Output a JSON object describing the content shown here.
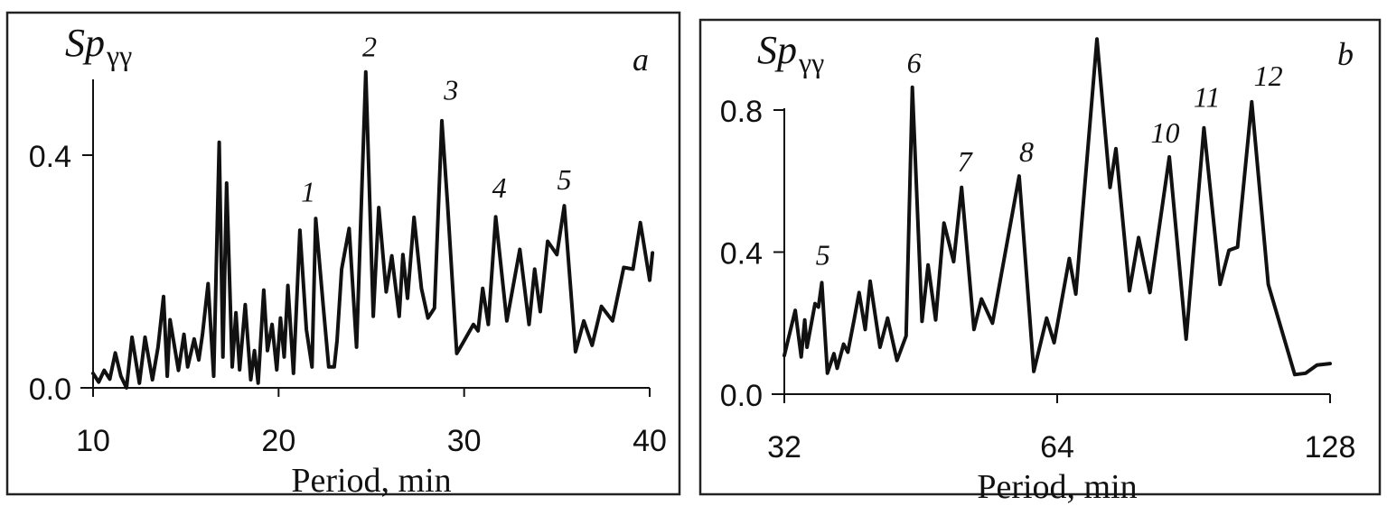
{
  "chart_data": [
    {
      "type": "line",
      "panel_label": "a",
      "ylabel_main": "Sp",
      "ylabel_sub": "γγ",
      "xlabel": "Period, min",
      "xscale": "linear",
      "xlim": [
        10,
        40
      ],
      "ylim": [
        0,
        0.53
      ],
      "xticks": [
        10,
        20,
        30,
        40
      ],
      "xtick_labels": [
        "10",
        "20",
        "30",
        "40"
      ],
      "yticks": [
        0.0,
        0.4
      ],
      "ytick_labels": [
        "0.0",
        "0.4"
      ],
      "grid": false,
      "series": [
        {
          "x": [
            10,
            10.3,
            10.6,
            10.9,
            11.2,
            11.5,
            11.8,
            12.1,
            12.5,
            12.8,
            13.2,
            13.5,
            13.8,
            14.0,
            14.15,
            14.6,
            14.9,
            15.1,
            15.45,
            15.7,
            15.9,
            16.2,
            16.5,
            16.8,
            17.0,
            17.2,
            17.5,
            17.7,
            17.9,
            18.2,
            18.5,
            18.7,
            18.9,
            19.2,
            19.4,
            19.65,
            19.9,
            20.1,
            20.3,
            20.5,
            20.8,
            21.15,
            21.5,
            21.8,
            22.0,
            22.4,
            22.7,
            23.0,
            23.15,
            23.4,
            23.8,
            24.2,
            24.7,
            25.1,
            25.4,
            25.8,
            26.1,
            26.5,
            26.7,
            26.95,
            27.3,
            27.7,
            28.05,
            28.4,
            28.8,
            29.1,
            29.6,
            30.0,
            30.5,
            30.75,
            31.0,
            31.3,
            31.7,
            32.3,
            33.0,
            33.5,
            33.8,
            34.1,
            34.5,
            35.0,
            35.4,
            36.0,
            36.45,
            36.9,
            37.4,
            38.0,
            38.6,
            39.1,
            39.5,
            40.0,
            40.15
          ],
          "y": [
            0.025,
            0.01,
            0.03,
            0.015,
            0.06,
            0.02,
            0.0,
            0.087,
            0.008,
            0.087,
            0.014,
            0.07,
            0.157,
            0.02,
            0.117,
            0.03,
            0.092,
            0.036,
            0.084,
            0.048,
            0.092,
            0.179,
            0.02,
            0.422,
            0.053,
            0.352,
            0.036,
            0.129,
            0.031,
            0.143,
            0.014,
            0.064,
            0.008,
            0.168,
            0.064,
            0.109,
            0.031,
            0.12,
            0.053,
            0.176,
            0.025,
            0.271,
            0.1,
            0.036,
            0.291,
            0.143,
            0.036,
            0.036,
            0.081,
            0.204,
            0.274,
            0.07,
            0.543,
            0.123,
            0.31,
            0.165,
            0.227,
            0.123,
            0.229,
            0.154,
            0.293,
            0.171,
            0.12,
            0.137,
            0.459,
            0.319,
            0.059,
            0.081,
            0.109,
            0.098,
            0.171,
            0.109,
            0.294,
            0.115,
            0.238,
            0.109,
            0.204,
            0.131,
            0.252,
            0.229,
            0.313,
            0.062,
            0.115,
            0.073,
            0.14,
            0.115,
            0.207,
            0.204,
            0.284,
            0.185,
            0.232
          ]
        }
      ],
      "annotations": [
        {
          "text": "1",
          "x": 21.6,
          "y": 0.32
        },
        {
          "text": "2",
          "x": 24.9,
          "y": 0.57
        },
        {
          "text": "3",
          "x": 29.3,
          "y": 0.495
        },
        {
          "text": "4",
          "x": 31.9,
          "y": 0.327
        },
        {
          "text": "5",
          "x": 35.4,
          "y": 0.341
        }
      ]
    },
    {
      "type": "line",
      "panel_label": "b",
      "ylabel_main": "Sp",
      "ylabel_sub": "γγ",
      "xlabel": "Period, min",
      "xscale": "log2",
      "xlim": [
        32,
        128
      ],
      "ylim": [
        0,
        1.0
      ],
      "xticks": [
        32,
        64,
        128
      ],
      "xtick_labels": [
        "32",
        "64",
        "128"
      ],
      "yticks": [
        0.0,
        0.4,
        0.8
      ],
      "ytick_labels": [
        "0.0",
        "0.4",
        "0.8"
      ],
      "grid": false,
      "series": [
        {
          "x": [
            32,
            32.9,
            33.4,
            33.7,
            33.9,
            34.6,
            34.9,
            35.2,
            35.7,
            36.3,
            36.6,
            37.2,
            37.6,
            38.2,
            38.7,
            39.3,
            39.8,
            40.8,
            41.6,
            42.6,
            43.6,
            44.3,
            45.4,
            46.1,
            47.0,
            48.0,
            49.2,
            50.2,
            51.8,
            52.8,
            54.3,
            58.1,
            60.3,
            62.3,
            63.5,
            66.0,
            67.1,
            70.8,
            73.2,
            74.3,
            76.9,
            78.7,
            81.0,
            85.1,
            88.8,
            92.9,
            96.8,
            99.0,
            101.2,
            104.9,
            109.4,
            117.0,
            120.3,
            123.8,
            128
          ],
          "y": [
            0.109,
            0.236,
            0.105,
            0.209,
            0.132,
            0.255,
            0.245,
            0.314,
            0.059,
            0.114,
            0.073,
            0.141,
            0.118,
            0.209,
            0.286,
            0.182,
            0.318,
            0.132,
            0.214,
            0.095,
            0.164,
            0.864,
            0.205,
            0.364,
            0.209,
            0.482,
            0.373,
            0.582,
            0.182,
            0.268,
            0.2,
            0.614,
            0.064,
            0.214,
            0.145,
            0.382,
            0.282,
            1.0,
            0.582,
            0.691,
            0.291,
            0.441,
            0.286,
            0.668,
            0.155,
            0.75,
            0.309,
            0.405,
            0.414,
            0.823,
            0.309,
            0.055,
            0.059,
            0.082,
            0.086
          ]
        }
      ],
      "annotations": [
        {
          "text": "5",
          "x": 35.3,
          "y": 0.364
        },
        {
          "text": "6",
          "x": 44.5,
          "y": 0.905
        },
        {
          "text": "7",
          "x": 50.6,
          "y": 0.627
        },
        {
          "text": "8",
          "x": 59.2,
          "y": 0.655
        },
        {
          "text": "10",
          "x": 84.2,
          "y": 0.709
        },
        {
          "text": "11",
          "x": 93.6,
          "y": 0.809
        },
        {
          "text": "12",
          "x": 109.4,
          "y": 0.868
        }
      ]
    }
  ]
}
